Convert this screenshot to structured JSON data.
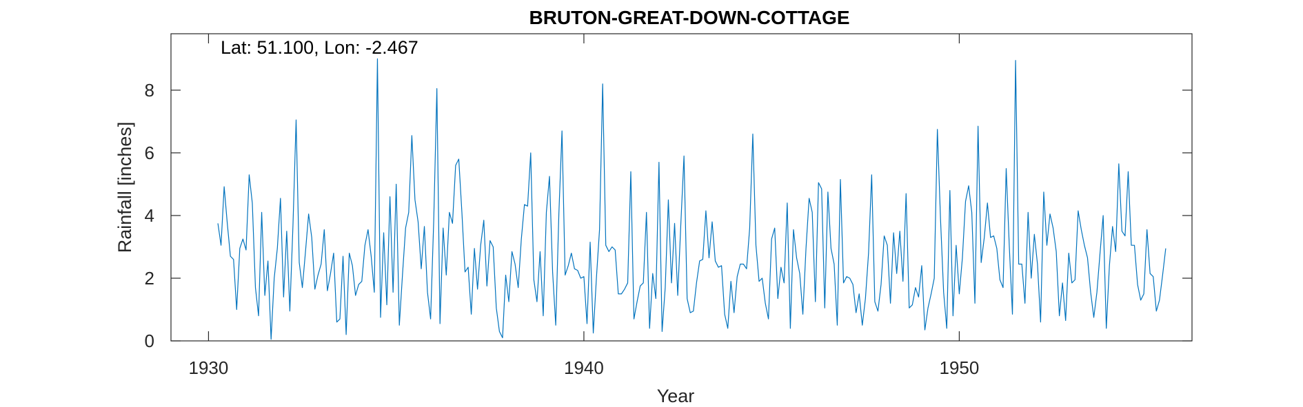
{
  "chart_data": {
    "type": "line",
    "title": "BRUTON-GREAT-DOWN-COTTAGE",
    "annotation": "Lat: 51.100, Lon: -2.467",
    "xlabel": "Year",
    "ylabel": "Rainfall [inches]",
    "xlim": [
      1929,
      1956.2
    ],
    "ylim": [
      0,
      9.8
    ],
    "xticks": [
      1930,
      1940,
      1950
    ],
    "yticks": [
      0,
      2,
      4,
      6,
      8
    ],
    "grid": false,
    "series_color": "#0072BD",
    "x_start": 1930.25,
    "x_step": 0.0833333,
    "values": [
      3.75,
      3.05,
      4.92,
      3.75,
      2.7,
      2.6,
      1.0,
      2.95,
      3.25,
      2.9,
      5.3,
      4.4,
      1.7,
      0.8,
      4.1,
      1.45,
      2.55,
      0.05,
      2.0,
      2.95,
      4.55,
      1.4,
      3.5,
      0.95,
      3.7,
      7.05,
      2.5,
      1.7,
      2.85,
      4.05,
      3.3,
      1.65,
      2.1,
      2.45,
      3.55,
      1.6,
      2.15,
      2.8,
      0.6,
      0.7,
      2.7,
      0.2,
      2.8,
      2.4,
      1.45,
      1.8,
      1.9,
      3.05,
      3.55,
      2.7,
      1.55,
      9.0,
      0.75,
      3.45,
      1.15,
      4.6,
      1.55,
      5.0,
      0.5,
      2.1,
      3.6,
      4.1,
      6.55,
      4.5,
      3.8,
      2.3,
      3.65,
      1.55,
      0.7,
      3.85,
      8.05,
      0.55,
      3.6,
      2.1,
      4.1,
      3.75,
      5.6,
      5.8,
      4.1,
      2.2,
      2.35,
      0.85,
      2.95,
      1.65,
      3.05,
      3.85,
      1.75,
      3.2,
      3.0,
      1.05,
      0.3,
      0.1,
      2.1,
      1.25,
      2.85,
      2.45,
      1.7,
      3.25,
      4.35,
      4.3,
      6.0,
      1.95,
      1.25,
      2.85,
      0.8,
      4.1,
      5.25,
      2.2,
      0.5,
      4.05,
      6.7,
      2.1,
      2.4,
      2.8,
      2.3,
      2.25,
      2.0,
      2.05,
      0.55,
      3.15,
      0.25,
      2.0,
      3.55,
      8.2,
      3.05,
      2.85,
      3.0,
      2.9,
      1.5,
      1.5,
      1.65,
      1.85,
      5.4,
      0.7,
      1.25,
      1.75,
      1.85,
      4.1,
      0.4,
      2.15,
      1.35,
      5.7,
      0.3,
      1.7,
      4.5,
      1.85,
      3.75,
      1.45,
      3.75,
      5.9,
      1.35,
      0.9,
      0.95,
      1.85,
      2.55,
      2.6,
      4.15,
      2.65,
      3.8,
      2.55,
      2.35,
      2.4,
      0.85,
      0.4,
      1.9,
      0.9,
      2.05,
      2.45,
      2.45,
      2.3,
      3.6,
      6.6,
      3.05,
      1.9,
      2.0,
      1.2,
      0.7,
      3.25,
      3.6,
      1.35,
      2.35,
      1.85,
      4.4,
      0.4,
      3.55,
      2.65,
      2.15,
      0.85,
      2.95,
      4.55,
      4.1,
      1.25,
      5.05,
      4.85,
      1.05,
      4.75,
      2.95,
      2.45,
      0.5,
      5.15,
      1.85,
      2.05,
      2.0,
      1.8,
      0.9,
      1.5,
      0.5,
      1.35,
      2.8,
      5.3,
      1.25,
      0.95,
      1.8,
      3.35,
      3.05,
      1.2,
      3.45,
      2.15,
      3.5,
      1.9,
      4.7,
      1.05,
      1.15,
      1.7,
      1.4,
      2.4,
      0.35,
      1.05,
      1.5,
      2.0,
      6.75,
      3.9,
      1.55,
      0.4,
      4.8,
      0.8,
      3.05,
      1.5,
      2.65,
      4.45,
      4.95,
      4.1,
      1.2,
      6.85,
      2.5,
      3.3,
      4.4,
      3.3,
      3.35,
      2.95,
      1.95,
      1.7,
      5.5,
      3.0,
      0.85,
      8.95,
      2.45,
      2.45,
      1.2,
      4.1,
      2.0,
      3.4,
      2.45,
      0.6,
      4.75,
      3.05,
      4.05,
      3.6,
      2.85,
      0.8,
      1.85,
      0.65,
      2.8,
      1.85,
      1.95,
      4.15,
      3.55,
      3.05,
      2.65,
      1.55,
      0.75,
      1.55,
      2.8,
      4.0,
      0.4,
      2.4,
      3.65,
      2.85,
      5.65,
      3.5,
      3.35,
      5.4,
      3.05,
      3.05,
      1.8,
      1.3,
      1.5,
      3.55,
      2.15,
      2.05,
      0.95,
      1.3,
      2.1,
      2.95
    ]
  }
}
